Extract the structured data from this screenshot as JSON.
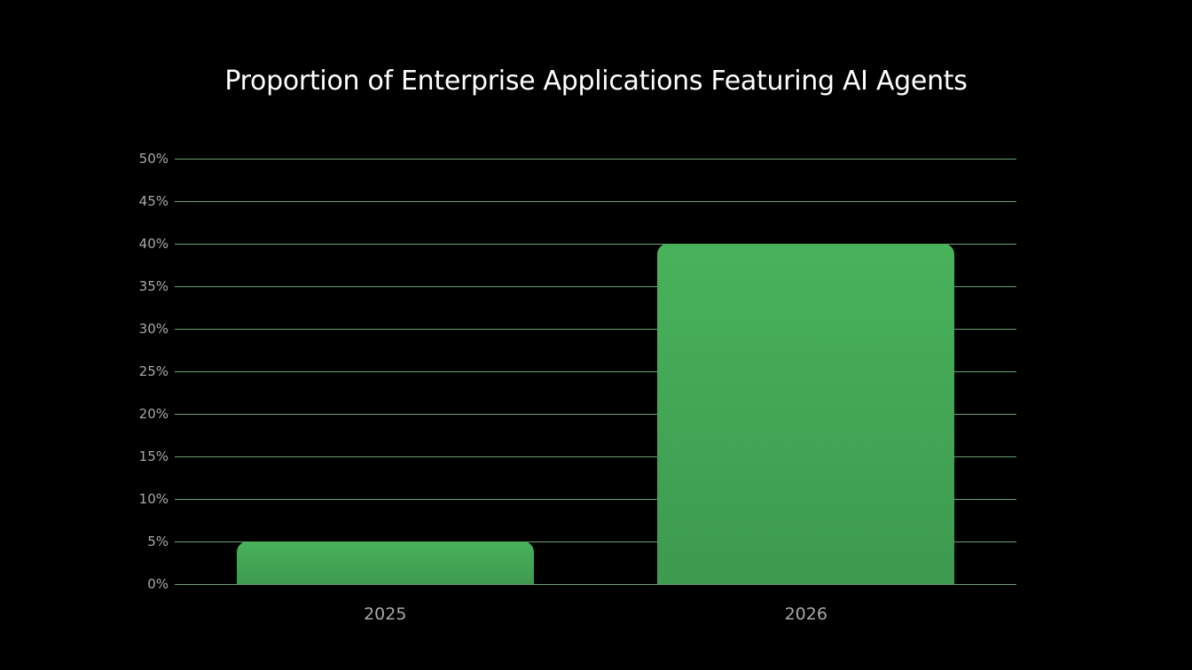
{
  "chart_data": {
    "type": "bar",
    "title": "Proportion of Enterprise Applications Featuring AI Agents",
    "categories": [
      "2025",
      "2026"
    ],
    "values": [
      5,
      40
    ],
    "xlabel": "",
    "ylabel": "",
    "ylim": [
      0,
      50
    ],
    "yticks": [
      "0%",
      "5%",
      "10%",
      "15%",
      "20%",
      "25%",
      "30%",
      "35%",
      "40%",
      "45%",
      "50%"
    ],
    "grid": true,
    "legend": null,
    "bar_color": "#48b25a",
    "grid_color": "#6a9f72",
    "background": "#000000"
  }
}
